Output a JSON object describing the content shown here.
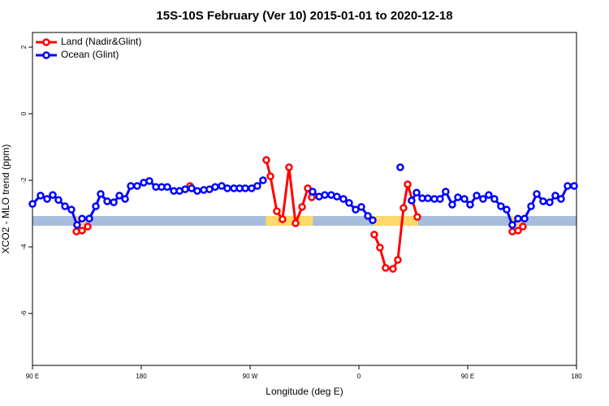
{
  "chart_data": {
    "type": "line",
    "title": "15S-10S February (Ver 10)   2015-01-01 to 2020-12-18",
    "xlabel": "Longitude (deg E)",
    "ylabel": "XCO2 - MLO trend (ppm)",
    "xlim": [
      90,
      540
    ],
    "ylim": [
      -7.56,
      2.44
    ],
    "xticks": [
      {
        "value": 90,
        "label": "90 E"
      },
      {
        "value": 180,
        "label": "180"
      },
      {
        "value": 270,
        "label": "90 W"
      },
      {
        "value": 360,
        "label": "0"
      },
      {
        "value": 450,
        "label": "90 E"
      },
      {
        "value": 540,
        "label": "180"
      }
    ],
    "yticks": [
      -6,
      -4,
      -2,
      0,
      2
    ],
    "legend": "top-left",
    "strip": {
      "value": -3.22,
      "color": "#a6bddb",
      "land_color": "#fdd86a",
      "land": [
        [
          126,
          134
        ],
        [
          283,
          322
        ],
        [
          372,
          409
        ],
        [
          486,
          494
        ]
      ]
    },
    "series": [
      {
        "name": "Land (Nadir&Glint)",
        "color": "#ff0000",
        "x": [
          126.3,
          131.0,
          135.7,
          null,
          220.3,
          null,
          283.4,
          286.8,
          292.1,
          296.8,
          302.2,
          307.6,
          313.0,
          317.7,
          321.0,
          null,
          372.7,
          377.4,
          382.1,
          388.2,
          392.2,
          396.9,
          400.3,
          408.3,
          null,
          486.9,
          491.6,
          495.6
        ],
        "values": [
          -3.54,
          -3.51,
          -3.39,
          null,
          -2.17,
          null,
          -1.39,
          -1.88,
          -2.93,
          -3.17,
          -1.61,
          -3.29,
          -2.8,
          -2.24,
          -2.51,
          null,
          -3.63,
          -4.02,
          -4.63,
          -4.66,
          -4.39,
          -2.83,
          -2.12,
          -3.1,
          null,
          -3.54,
          -3.51,
          -3.39
        ]
      },
      {
        "name": "Ocean (Glint)",
        "color": "#0000ff",
        "x": [
          90,
          96.7,
          102.1,
          106.8,
          111.5,
          116.9,
          122.2,
          126.9,
          131.0,
          137.0,
          142.4,
          146.4,
          151.8,
          157.2,
          161.9,
          166.6,
          171.3,
          176.6,
          182.0,
          186.7,
          192.1,
          196.8,
          201.5,
          206.9,
          211.6,
          216.3,
          221.6,
          226.3,
          231.7,
          236.4,
          241.1,
          246.5,
          251.2,
          256.6,
          261.3,
          266.0,
          271.3,
          276.0,
          280.7,
          null,
          321.7,
          327.1,
          331.8,
          337.1,
          341.8,
          347.2,
          351.9,
          357.3,
          362.0,
          367.4,
          371.4,
          null,
          394.2,
          null,
          403.6,
          407.7,
          412.4,
          417.1,
          422.4,
          427.1,
          431.8,
          437.2,
          441.9,
          447.3,
          452.0,
          457.4,
          462.7,
          467.4,
          472.1,
          477.5,
          482.2,
          486.9,
          491.6,
          497.0,
          502.4,
          507.1,
          512.4,
          517.8,
          522.5,
          527.2,
          532.6,
          538.0
        ],
        "values": [
          -2.71,
          -2.46,
          -2.56,
          -2.44,
          -2.59,
          -2.78,
          -2.88,
          -3.34,
          -3.15,
          -3.15,
          -2.78,
          -2.41,
          -2.63,
          -2.66,
          -2.46,
          -2.56,
          -2.17,
          -2.17,
          -2.07,
          -2.02,
          -2.2,
          -2.2,
          -2.2,
          -2.32,
          -2.32,
          -2.27,
          -2.24,
          -2.32,
          -2.29,
          -2.27,
          -2.2,
          -2.17,
          -2.24,
          -2.24,
          -2.24,
          -2.24,
          -2.24,
          -2.17,
          -2.0,
          null,
          -2.34,
          -2.49,
          -2.44,
          -2.44,
          -2.49,
          -2.56,
          -2.68,
          -2.88,
          -2.8,
          -3.07,
          -3.2,
          null,
          -1.61,
          null,
          -2.61,
          -2.37,
          -2.54,
          -2.54,
          -2.56,
          -2.56,
          -2.34,
          -2.73,
          -2.51,
          -2.56,
          -2.73,
          -2.46,
          -2.56,
          -2.44,
          -2.56,
          -2.78,
          -2.88,
          -3.34,
          -3.15,
          -3.15,
          -2.78,
          -2.41,
          -2.63,
          -2.66,
          -2.46,
          -2.56,
          -2.17,
          -2.17
        ]
      }
    ]
  }
}
